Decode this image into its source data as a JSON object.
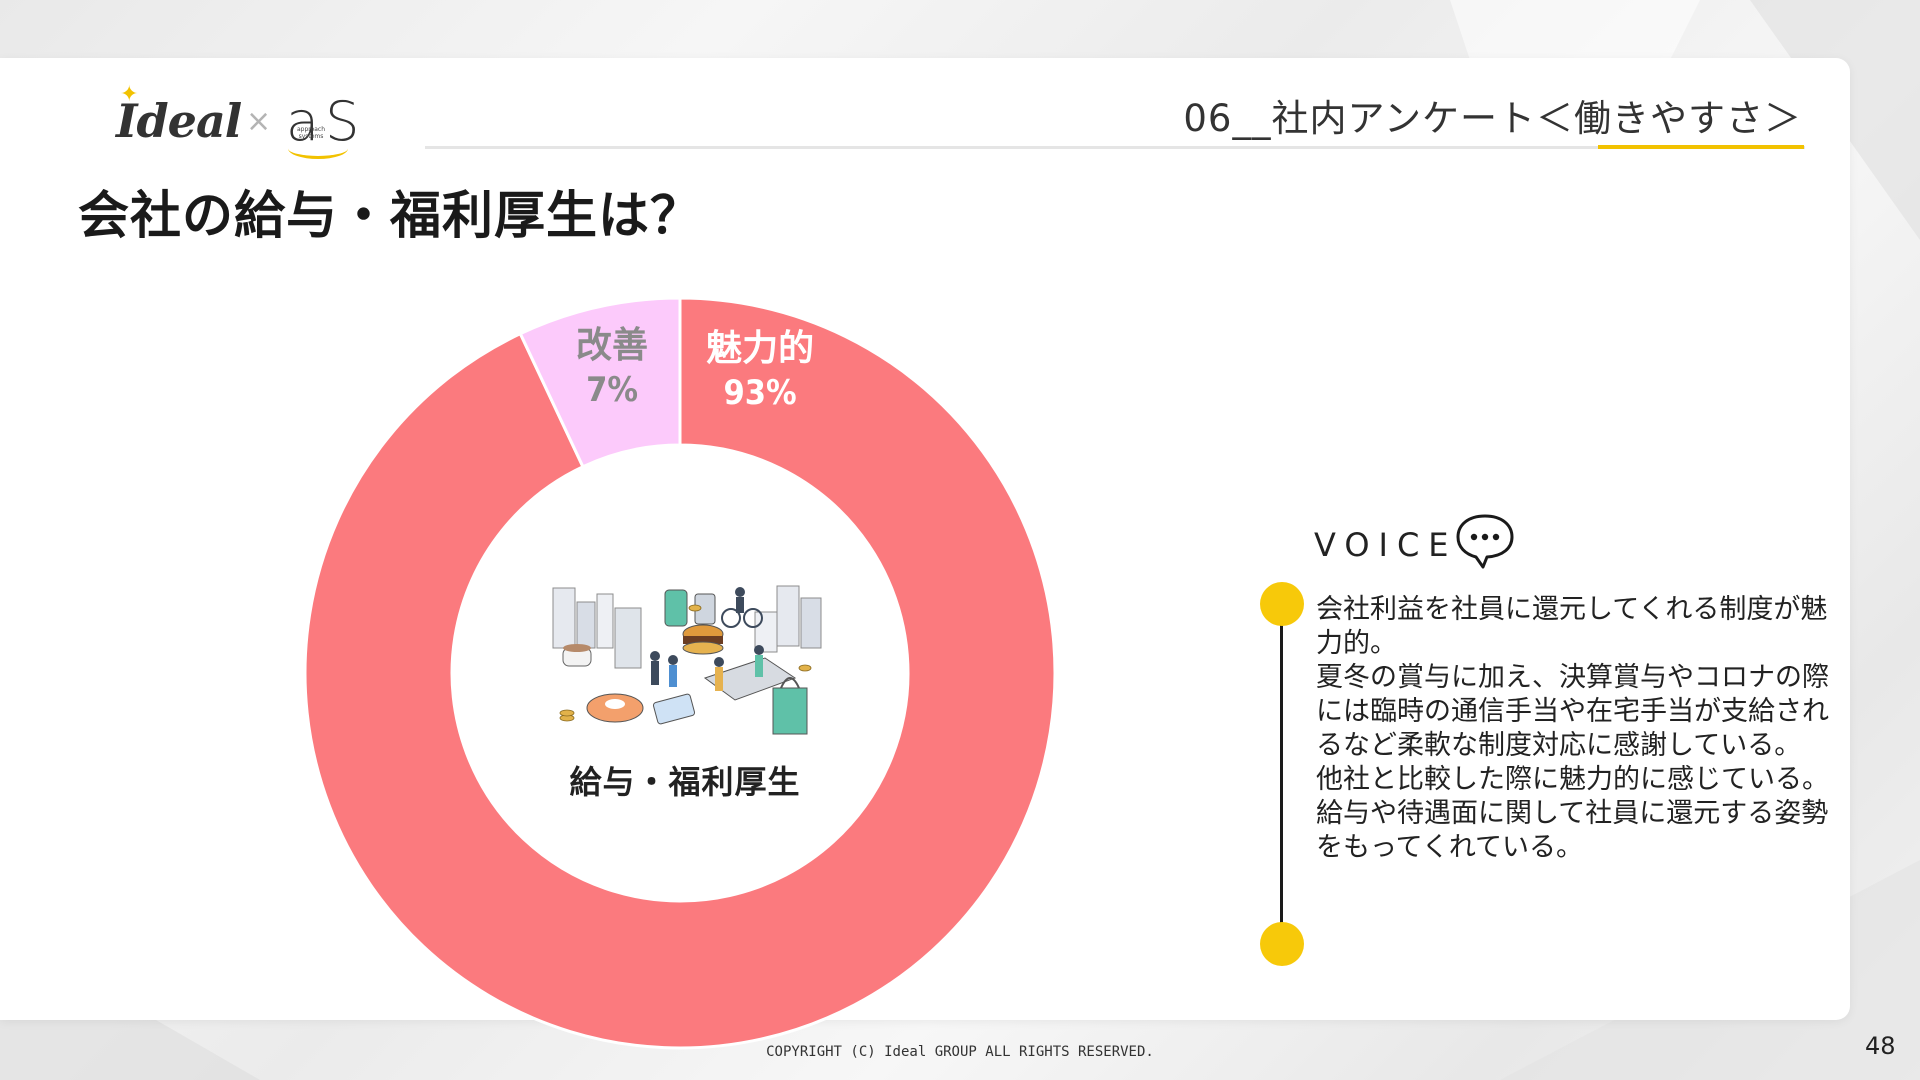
{
  "brand": {
    "primary": "Ideal",
    "separator": "×",
    "secondary": "aS",
    "secondary_sub": "approach systems",
    "accent_color": "#f2c200"
  },
  "header": {
    "section_title": "06__社内アンケート＜働きやすさ＞",
    "main_title": "会社の給与・福利厚生は？"
  },
  "chart_data": {
    "type": "pie",
    "variant": "donut",
    "center_label": "給与・福利厚生",
    "slices": [
      {
        "label": "魅力的",
        "value": 93,
        "value_label": "93%",
        "color": "#fb7a7e",
        "text_color": "#ffffff"
      },
      {
        "label": "改善",
        "value": 7,
        "value_label": "7%",
        "color": "#fccafb",
        "text_color": "#8a8a8a"
      }
    ]
  },
  "voice": {
    "title": "VOICE",
    "icon": "speech-bubble-ellipsis-icon",
    "lines": [
      "会社利益を社員に還元してくれる制度が魅",
      "力的。",
      "夏冬の賞与に加え、決算賞与やコロナの際",
      "には臨時の通信手当や在宅手当が支給され",
      "るなど柔軟な制度対応に感謝している。",
      "他社と比較した際に魅力的に感じている。",
      "給与や待遇面に関して社員に還元する姿勢",
      "をもってくれている。"
    ],
    "dot_color": "#f7c90a"
  },
  "footer": {
    "copyright": "COPYRIGHT (C) Ideal GROUP ALL RIGHTS RESERVED.",
    "page_number": "48"
  }
}
